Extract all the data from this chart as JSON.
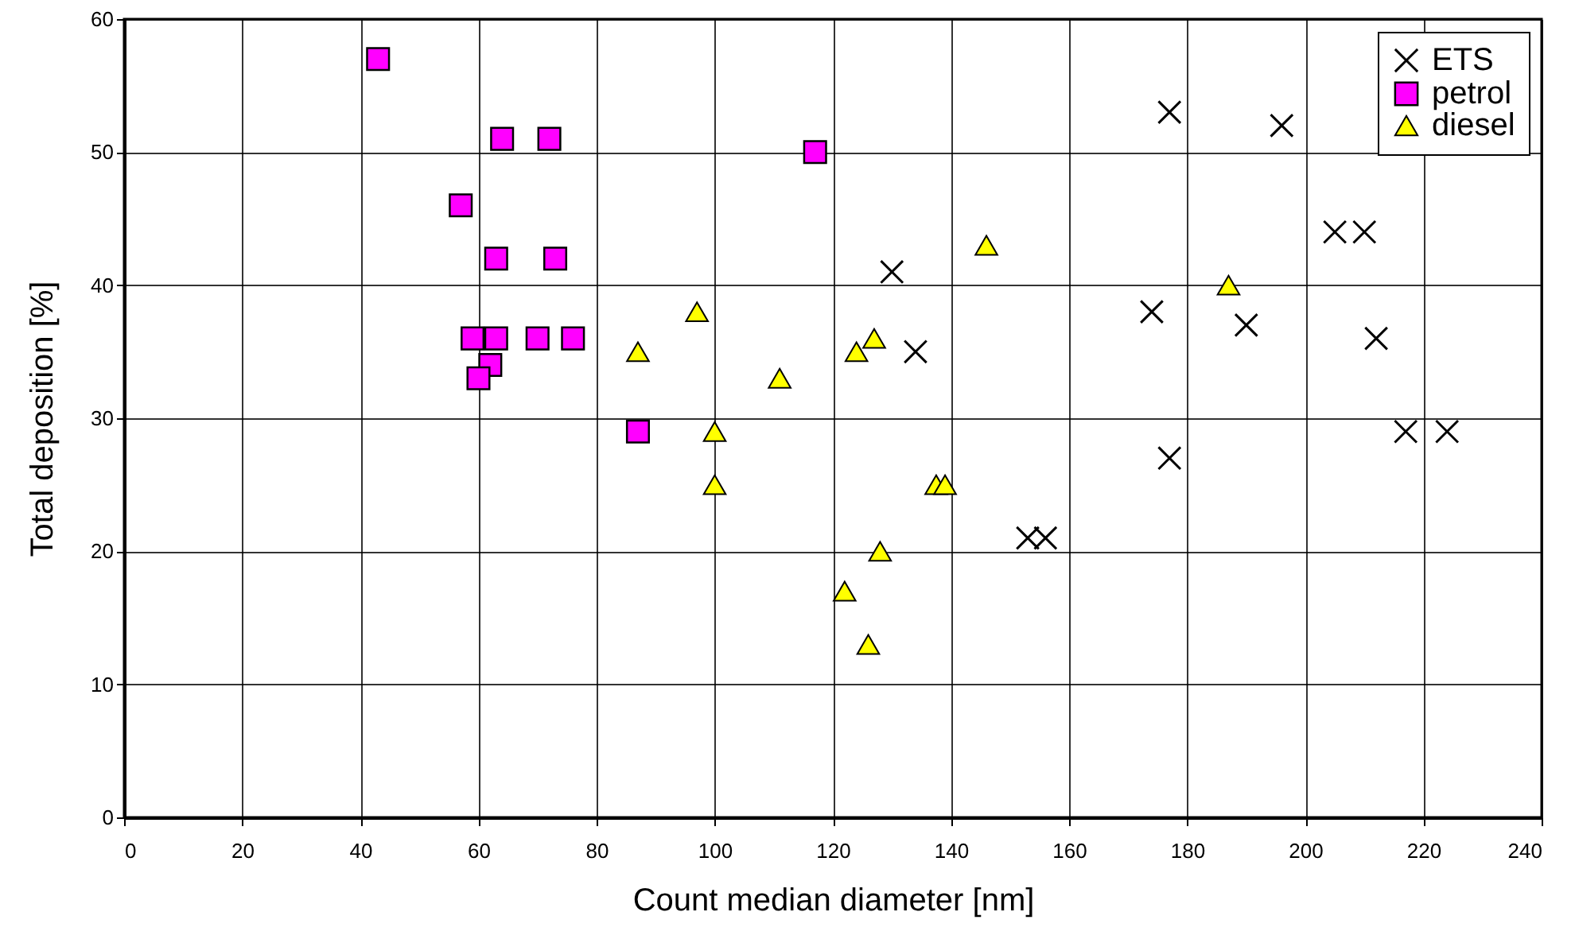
{
  "chart_data": {
    "type": "scatter",
    "xlabel": "Count median diameter [nm]",
    "ylabel": "Total deposition [%]",
    "xlim": [
      0,
      240
    ],
    "xticks": [
      0,
      20,
      40,
      60,
      80,
      100,
      120,
      140,
      160,
      180,
      200,
      220,
      240
    ],
    "ylim": [
      0,
      60
    ],
    "yticks": [
      0,
      10,
      20,
      30,
      40,
      50,
      60
    ],
    "grid": true,
    "legend": "top right",
    "series": [
      {
        "name": "ETS",
        "color": "#000000",
        "marker": "cross",
        "x": [
          177,
          196,
          205,
          210,
          130,
          174,
          190,
          134,
          212,
          217,
          224,
          177,
          153,
          156
        ],
        "values": [
          53,
          52,
          44,
          44,
          41,
          38,
          37,
          35,
          36,
          29,
          29,
          27,
          21,
          21
        ]
      },
      {
        "name": "petrol",
        "color": "#ff00ff",
        "marker": "square",
        "x": [
          43,
          64,
          72,
          57,
          63,
          73,
          59,
          63,
          70,
          76,
          62,
          60,
          87,
          117
        ],
        "values": [
          57,
          51,
          51,
          46,
          42,
          42,
          36,
          36,
          36,
          36,
          34,
          33,
          29,
          50
        ]
      },
      {
        "name": "diesel",
        "color": "#ffff00",
        "marker": "triangle",
        "x": [
          87,
          97,
          111,
          100,
          100,
          124,
          127,
          146,
          187,
          137.5,
          139,
          128,
          122,
          126
        ],
        "values": [
          35,
          38,
          33,
          29,
          25,
          35,
          36,
          43,
          40,
          25,
          25,
          20,
          17,
          13
        ]
      }
    ]
  }
}
